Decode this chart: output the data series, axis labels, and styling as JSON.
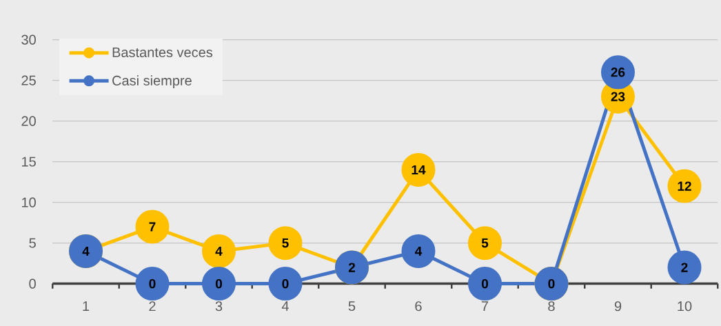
{
  "chart_data": {
    "type": "line",
    "categories": [
      "1",
      "2",
      "3",
      "4",
      "5",
      "6",
      "7",
      "8",
      "9",
      "10"
    ],
    "series": [
      {
        "name": "Bastantes veces",
        "color": "#ffc000",
        "values": [
          4,
          7,
          4,
          5,
          2,
          14,
          5,
          0,
          23,
          12
        ],
        "value_labels": [
          null,
          "7",
          "4",
          "5",
          null,
          "14",
          "5",
          null,
          "23",
          "12"
        ]
      },
      {
        "name": "Casi siempre",
        "color": "#4472c4",
        "values": [
          4,
          0,
          0,
          0,
          2,
          4,
          0,
          0,
          26,
          2
        ],
        "value_labels": [
          "4",
          "0",
          "0",
          "0",
          "2",
          "4",
          "0",
          "0",
          "26",
          "2"
        ]
      }
    ],
    "ylim": [
      0,
      30
    ],
    "yticks": [
      0,
      5,
      10,
      15,
      20,
      25,
      30
    ],
    "grid": "y",
    "legend": "top left",
    "marker": "circle",
    "line_style": "solid"
  }
}
